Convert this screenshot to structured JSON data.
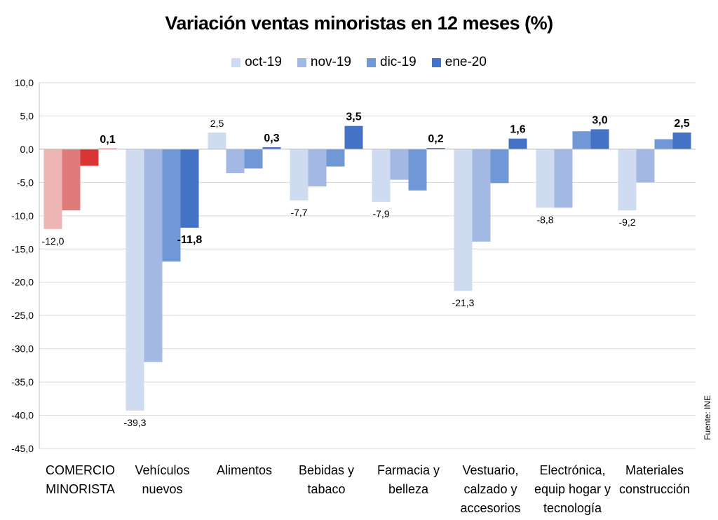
{
  "title": "Variación ventas minoristas en 12 meses (%)",
  "source": "Fuente: INE",
  "colors": {
    "series": [
      "#cfdbf0",
      "#a3b9e3",
      "#7198d6",
      "#4472c4"
    ],
    "highlight_series": [
      "#eeb5b5",
      "#e07b7b",
      "#d93535",
      "#c00000"
    ],
    "grid": "#d9d9d9"
  },
  "chart_data": {
    "type": "bar",
    "title": "Variación ventas minoristas en 12 meses (%)",
    "ylim": [
      -45,
      10
    ],
    "ytick_step": 5,
    "ytick_labels": [
      "10,0",
      "5,0",
      "0,0",
      "-5,0",
      "-10,0",
      "-15,0",
      "-20,0",
      "-25,0",
      "-30,0",
      "-35,0",
      "-40,0",
      "-45,0"
    ],
    "grid": true,
    "legend": "top",
    "categories": [
      [
        "COMERCIO",
        "MINORISTA"
      ],
      [
        "Vehículos",
        "nuevos"
      ],
      [
        "Alimentos"
      ],
      [
        "Bebidas y",
        "tabaco"
      ],
      [
        "Farmacia y",
        "belleza"
      ],
      [
        "Vestuario,",
        "calzado y",
        "accesorios"
      ],
      [
        "Electrónica,",
        "equip hogar y",
        "tecnología"
      ],
      [
        "Materiales",
        "construcción"
      ]
    ],
    "series": [
      {
        "name": "oct-19",
        "values": [
          -12.0,
          -39.3,
          2.5,
          -7.7,
          -7.9,
          -21.3,
          -8.8,
          -9.2
        ],
        "labels": [
          "-12,0",
          "-39,3",
          "2,5",
          "-7,7",
          "-7,9",
          "-21,3",
          "-8,8",
          "-9,2"
        ]
      },
      {
        "name": "nov-19",
        "values": [
          -9.2,
          -32.0,
          -3.6,
          -5.6,
          -4.6,
          -13.9,
          -8.8,
          -5.0
        ]
      },
      {
        "name": "dic-19",
        "values": [
          -2.5,
          -16.9,
          -2.9,
          -2.6,
          -6.2,
          -5.1,
          2.7,
          1.5
        ]
      },
      {
        "name": "ene-20",
        "values": [
          0.1,
          -11.8,
          0.3,
          3.5,
          0.2,
          1.6,
          3.0,
          2.5
        ],
        "labels": [
          "0,1",
          "-11,8",
          "0,3",
          "3,5",
          "0,2",
          "1,6",
          "3,0",
          "2,5"
        ]
      }
    ]
  }
}
